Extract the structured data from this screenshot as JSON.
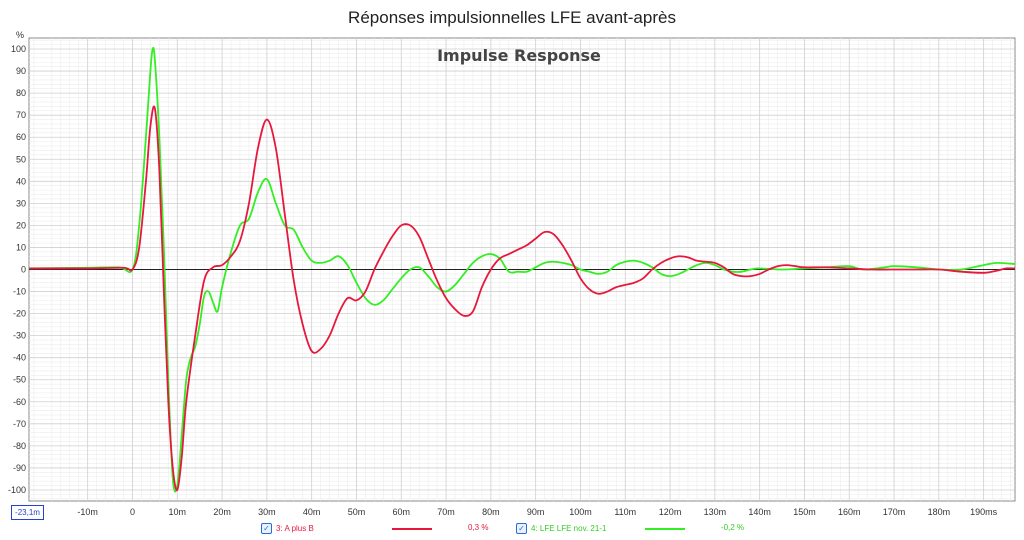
{
  "window_title": "Réponses impulsionnelles LFE avant-après",
  "cursor_readout": "-23,1m",
  "legend": [
    {
      "check": "✓",
      "label": "3: A plus B",
      "value": "0,3 %",
      "color": "#e8173c"
    },
    {
      "check": "✓",
      "label": "4: LFE LFE nov. 21-1",
      "value": "-0,2 %",
      "color": "#33ee22"
    }
  ],
  "chart_data": {
    "type": "line",
    "title": "Impulse Response",
    "ylabel": "%",
    "xlabel": "",
    "xlim": [
      -23.1,
      197
    ],
    "ylim": [
      -105,
      105
    ],
    "grid": true,
    "x_tick_values": [
      -10,
      0,
      10,
      20,
      30,
      40,
      50,
      60,
      70,
      80,
      90,
      100,
      110,
      120,
      130,
      140,
      150,
      160,
      170,
      180,
      190
    ],
    "x_tick_labels": [
      "-10m",
      "0",
      "10m",
      "20m",
      "30m",
      "40m",
      "50m",
      "60m",
      "70m",
      "80m",
      "90m",
      "100m",
      "110m",
      "120m",
      "130m",
      "140m",
      "150m",
      "160m",
      "170m",
      "180m",
      "190ms"
    ],
    "y_tick_values": [
      100,
      90,
      80,
      70,
      60,
      50,
      40,
      30,
      20,
      10,
      0,
      -10,
      -20,
      -30,
      -40,
      -50,
      -60,
      -70,
      -80,
      -90,
      -100
    ],
    "series": [
      {
        "name": "3: A plus B",
        "color": "#e8173c",
        "points": [
          [
            -23,
            0.5
          ],
          [
            -10,
            0.5
          ],
          [
            -2,
            0.8
          ],
          [
            0,
            0
          ],
          [
            1.5,
            10
          ],
          [
            3,
            40
          ],
          [
            4,
            65
          ],
          [
            5,
            73
          ],
          [
            6,
            45
          ],
          [
            7,
            -10
          ],
          [
            8,
            -60
          ],
          [
            9,
            -90
          ],
          [
            10,
            -100
          ],
          [
            11,
            -85
          ],
          [
            12,
            -60
          ],
          [
            14,
            -30
          ],
          [
            16,
            -5
          ],
          [
            18,
            1
          ],
          [
            20,
            2
          ],
          [
            22,
            6
          ],
          [
            24,
            13
          ],
          [
            26,
            30
          ],
          [
            28,
            55
          ],
          [
            30,
            68
          ],
          [
            32,
            55
          ],
          [
            34,
            25
          ],
          [
            36,
            -5
          ],
          [
            38,
            -25
          ],
          [
            40,
            -37
          ],
          [
            42,
            -36
          ],
          [
            44,
            -30
          ],
          [
            46,
            -20
          ],
          [
            48,
            -13
          ],
          [
            50,
            -14
          ],
          [
            52,
            -10
          ],
          [
            54,
            0
          ],
          [
            56,
            8
          ],
          [
            58,
            15
          ],
          [
            60,
            20
          ],
          [
            62,
            20
          ],
          [
            64,
            15
          ],
          [
            66,
            5
          ],
          [
            68,
            -5
          ],
          [
            70,
            -13
          ],
          [
            72,
            -18
          ],
          [
            74,
            -21
          ],
          [
            76,
            -19
          ],
          [
            78,
            -8
          ],
          [
            80,
            0
          ],
          [
            82,
            5
          ],
          [
            84,
            7
          ],
          [
            86,
            9
          ],
          [
            88,
            11
          ],
          [
            90,
            14
          ],
          [
            92,
            17
          ],
          [
            94,
            16
          ],
          [
            96,
            11
          ],
          [
            98,
            4
          ],
          [
            100,
            -4
          ],
          [
            102,
            -9
          ],
          [
            104,
            -11
          ],
          [
            106,
            -10
          ],
          [
            108,
            -8
          ],
          [
            110,
            -7
          ],
          [
            112,
            -6
          ],
          [
            114,
            -4
          ],
          [
            116,
            0
          ],
          [
            118,
            3
          ],
          [
            120,
            5
          ],
          [
            122,
            6
          ],
          [
            124,
            5.5
          ],
          [
            126,
            4
          ],
          [
            128,
            3.5
          ],
          [
            130,
            3
          ],
          [
            132,
            1
          ],
          [
            134,
            -2
          ],
          [
            136,
            -3
          ],
          [
            138,
            -3
          ],
          [
            140,
            -2
          ],
          [
            142,
            0
          ],
          [
            144,
            1.5
          ],
          [
            146,
            2
          ],
          [
            148,
            1.5
          ],
          [
            150,
            1
          ],
          [
            155,
            1
          ],
          [
            160,
            0.5
          ],
          [
            165,
            0
          ],
          [
            170,
            0
          ],
          [
            175,
            0
          ],
          [
            180,
            0
          ],
          [
            185,
            -1
          ],
          [
            190,
            -1.5
          ],
          [
            193,
            -0.5
          ],
          [
            195,
            0.5
          ],
          [
            197,
            0.5
          ]
        ]
      },
      {
        "name": "4: LFE LFE nov. 21-1",
        "color": "#33ee22",
        "points": [
          [
            -23,
            0.5
          ],
          [
            -10,
            0.8
          ],
          [
            -3,
            1
          ],
          [
            0,
            0
          ],
          [
            1.5,
            20
          ],
          [
            3,
            60
          ],
          [
            4,
            90
          ],
          [
            4.5,
            100
          ],
          [
            5,
            95
          ],
          [
            6,
            60
          ],
          [
            7,
            10
          ],
          [
            8,
            -50
          ],
          [
            9,
            -95
          ],
          [
            10,
            -98
          ],
          [
            11,
            -75
          ],
          [
            12,
            -50
          ],
          [
            13,
            -40
          ],
          [
            14,
            -35
          ],
          [
            15,
            -25
          ],
          [
            16,
            -12
          ],
          [
            17,
            -10
          ],
          [
            18,
            -15
          ],
          [
            19,
            -19
          ],
          [
            20,
            -8
          ],
          [
            22,
            8
          ],
          [
            24,
            20
          ],
          [
            26,
            23
          ],
          [
            28,
            35
          ],
          [
            30,
            41
          ],
          [
            32,
            30
          ],
          [
            34,
            20
          ],
          [
            36,
            18
          ],
          [
            38,
            10
          ],
          [
            40,
            4
          ],
          [
            42,
            3
          ],
          [
            44,
            4
          ],
          [
            46,
            6
          ],
          [
            48,
            2
          ],
          [
            50,
            -6
          ],
          [
            52,
            -13
          ],
          [
            54,
            -16
          ],
          [
            56,
            -14
          ],
          [
            58,
            -9
          ],
          [
            60,
            -4
          ],
          [
            62,
            0
          ],
          [
            64,
            1
          ],
          [
            66,
            -3
          ],
          [
            68,
            -8
          ],
          [
            70,
            -10
          ],
          [
            72,
            -7
          ],
          [
            74,
            -2
          ],
          [
            76,
            3
          ],
          [
            78,
            6
          ],
          [
            80,
            7
          ],
          [
            82,
            5
          ],
          [
            84,
            -1
          ],
          [
            86,
            -1
          ],
          [
            88,
            -1
          ],
          [
            90,
            1
          ],
          [
            92,
            3
          ],
          [
            94,
            3.5
          ],
          [
            96,
            3
          ],
          [
            98,
            2
          ],
          [
            100,
            0
          ],
          [
            102,
            -1
          ],
          [
            104,
            -2
          ],
          [
            106,
            -1
          ],
          [
            108,
            2
          ],
          [
            110,
            3.5
          ],
          [
            112,
            4
          ],
          [
            114,
            3
          ],
          [
            116,
            1
          ],
          [
            118,
            -2
          ],
          [
            120,
            -3
          ],
          [
            122,
            -2
          ],
          [
            124,
            0
          ],
          [
            126,
            2
          ],
          [
            128,
            3
          ],
          [
            130,
            2
          ],
          [
            132,
            0
          ],
          [
            134,
            -1
          ],
          [
            136,
            -1
          ],
          [
            138,
            0
          ],
          [
            140,
            0.5
          ],
          [
            145,
            0
          ],
          [
            150,
            0.5
          ],
          [
            155,
            1
          ],
          [
            160,
            1.5
          ],
          [
            163,
            0
          ],
          [
            168,
            1
          ],
          [
            170,
            1.5
          ],
          [
            175,
            1
          ],
          [
            180,
            0
          ],
          [
            185,
            0
          ],
          [
            190,
            2
          ],
          [
            193,
            3
          ],
          [
            197,
            2.5
          ]
        ]
      }
    ]
  }
}
